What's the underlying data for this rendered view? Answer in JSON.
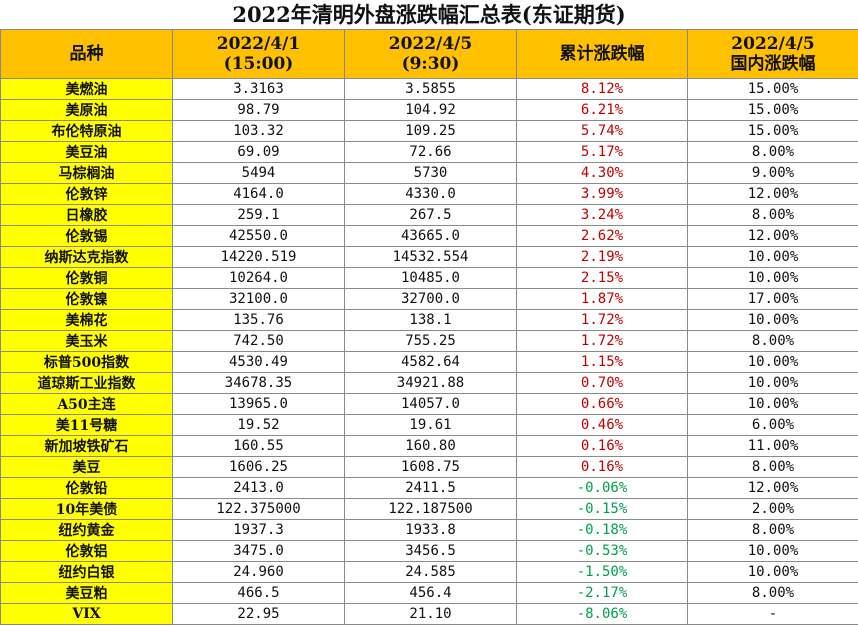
{
  "title": "2022年清明外盘涨跌幅汇总表(东证期货)",
  "headers": {
    "name": "品种",
    "col1_line1": "2022/4/1",
    "col1_line2": "(15:00)",
    "col2_line1": "2022/4/5",
    "col2_line2": "(9:30)",
    "col3": "累计涨跌幅",
    "col4_line1": "2022/4/5",
    "col4_line2": "国内涨跌幅"
  },
  "colors": {
    "header_bg": "#ffc000",
    "name_bg": "#ffff00",
    "up": "#c00000",
    "down": "#00a050"
  },
  "rows": [
    {
      "name": "美燃油",
      "p1": "3.3163",
      "p2": "3.5855",
      "chg": "8.12%",
      "dom": "15.00%",
      "dir": "up"
    },
    {
      "name": "美原油",
      "p1": "98.79",
      "p2": "104.92",
      "chg": "6.21%",
      "dom": "15.00%",
      "dir": "up"
    },
    {
      "name": "布伦特原油",
      "p1": "103.32",
      "p2": "109.25",
      "chg": "5.74%",
      "dom": "15.00%",
      "dir": "up"
    },
    {
      "name": "美豆油",
      "p1": "69.09",
      "p2": "72.66",
      "chg": "5.17%",
      "dom": "8.00%",
      "dir": "up"
    },
    {
      "name": "马棕榈油",
      "p1": "5494",
      "p2": "5730",
      "chg": "4.30%",
      "dom": "9.00%",
      "dir": "up"
    },
    {
      "name": "伦敦锌",
      "p1": "4164.0",
      "p2": "4330.0",
      "chg": "3.99%",
      "dom": "12.00%",
      "dir": "up"
    },
    {
      "name": "日橡胶",
      "p1": "259.1",
      "p2": "267.5",
      "chg": "3.24%",
      "dom": "8.00%",
      "dir": "up"
    },
    {
      "name": "伦敦锡",
      "p1": "42550.0",
      "p2": "43665.0",
      "chg": "2.62%",
      "dom": "12.00%",
      "dir": "up"
    },
    {
      "name": "纳斯达克指数",
      "p1": "14220.519",
      "p2": "14532.554",
      "chg": "2.19%",
      "dom": "10.00%",
      "dir": "up"
    },
    {
      "name": "伦敦铜",
      "p1": "10264.0",
      "p2": "10485.0",
      "chg": "2.15%",
      "dom": "10.00%",
      "dir": "up"
    },
    {
      "name": "伦敦镍",
      "p1": "32100.0",
      "p2": "32700.0",
      "chg": "1.87%",
      "dom": "17.00%",
      "dir": "up"
    },
    {
      "name": "美棉花",
      "p1": "135.76",
      "p2": "138.1",
      "chg": "1.72%",
      "dom": "10.00%",
      "dir": "up"
    },
    {
      "name": "美玉米",
      "p1": "742.50",
      "p2": "755.25",
      "chg": "1.72%",
      "dom": "8.00%",
      "dir": "up"
    },
    {
      "name": "标普500指数",
      "p1": "4530.49",
      "p2": "4582.64",
      "chg": "1.15%",
      "dom": "10.00%",
      "dir": "up"
    },
    {
      "name": "道琼斯工业指数",
      "p1": "34678.35",
      "p2": "34921.88",
      "chg": "0.70%",
      "dom": "10.00%",
      "dir": "up"
    },
    {
      "name": "A50主连",
      "p1": "13965.0",
      "p2": "14057.0",
      "chg": "0.66%",
      "dom": "10.00%",
      "dir": "up"
    },
    {
      "name": "美11号糖",
      "p1": "19.52",
      "p2": "19.61",
      "chg": "0.46%",
      "dom": "6.00%",
      "dir": "up"
    },
    {
      "name": "新加坡铁矿石",
      "p1": "160.55",
      "p2": "160.80",
      "chg": "0.16%",
      "dom": "11.00%",
      "dir": "up"
    },
    {
      "name": "美豆",
      "p1": "1606.25",
      "p2": "1608.75",
      "chg": "0.16%",
      "dom": "8.00%",
      "dir": "up"
    },
    {
      "name": "伦敦铅",
      "p1": "2413.0",
      "p2": "2411.5",
      "chg": "-0.06%",
      "dom": "12.00%",
      "dir": "down"
    },
    {
      "name": "10年美债",
      "p1": "122.375000",
      "p2": "122.187500",
      "chg": "-0.15%",
      "dom": "2.00%",
      "dir": "down"
    },
    {
      "name": "纽约黄金",
      "p1": "1937.3",
      "p2": "1933.8",
      "chg": "-0.18%",
      "dom": "8.00%",
      "dir": "down"
    },
    {
      "name": "伦敦铝",
      "p1": "3475.0",
      "p2": "3456.5",
      "chg": "-0.53%",
      "dom": "10.00%",
      "dir": "down"
    },
    {
      "name": "纽约白银",
      "p1": "24.960",
      "p2": "24.585",
      "chg": "-1.50%",
      "dom": "10.00%",
      "dir": "down"
    },
    {
      "name": "美豆粕",
      "p1": "466.5",
      "p2": "456.4",
      "chg": "-2.17%",
      "dom": "8.00%",
      "dir": "down"
    },
    {
      "name": "VIX",
      "p1": "22.95",
      "p2": "21.10",
      "chg": "-8.06%",
      "dom": "-",
      "dir": "down"
    }
  ]
}
